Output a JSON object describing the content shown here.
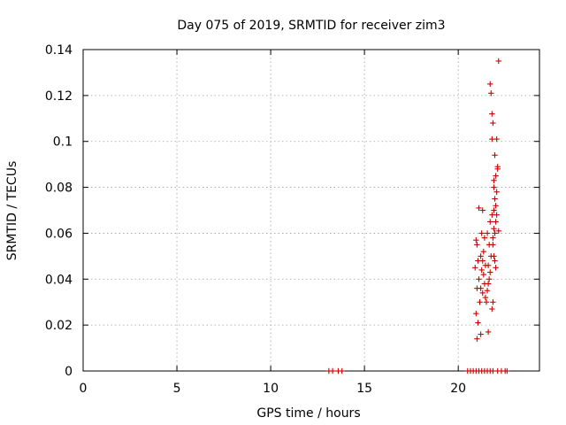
{
  "chart_data": {
    "type": "scatter",
    "title": "Day 075 of 2019, SRMTID for receiver zim3",
    "xlabel": "GPS time / hours",
    "ylabel": "SRMTID / TECUs",
    "xlim": [
      0,
      24.33
    ],
    "ylim": [
      0,
      0.14
    ],
    "x_ticks": [
      0,
      5,
      10,
      15,
      20
    ],
    "x_tick_labels": [
      "0",
      "5",
      "10",
      "15",
      "20"
    ],
    "y_ticks": [
      0,
      0.02,
      0.04,
      0.06,
      0.08,
      0.1,
      0.12,
      0.14
    ],
    "y_tick_labels": [
      "0",
      "0.02",
      "0.04",
      "0.06",
      "0.08",
      "0.1",
      "0.12",
      "0.14"
    ],
    "grid": true,
    "legend": "none",
    "marker": "+",
    "color": "#cc0000",
    "series": [
      {
        "x": [
          13.1,
          13.3,
          13.6,
          13.8,
          20.5,
          20.65,
          20.8,
          20.95,
          21.1,
          21.25,
          21.4,
          21.55,
          21.7,
          21.85,
          22.1,
          22.3,
          22.5,
          22.6,
          20.95,
          21.0,
          21.05,
          20.9,
          21.1,
          21.0,
          21.15,
          20.95,
          21.05,
          21.2,
          21.0,
          21.1,
          21.3,
          21.25,
          21.4,
          21.35,
          21.2,
          21.3,
          21.45,
          21.25,
          21.35,
          21.4,
          21.2,
          21.3,
          21.5,
          21.45,
          21.6,
          21.55,
          21.65,
          21.7,
          21.6,
          21.75,
          21.65,
          21.55,
          21.7,
          21.8,
          21.6,
          21.85,
          21.95,
          21.9,
          22.0,
          22.05,
          21.9,
          22.0,
          21.95,
          22.05,
          21.9,
          22.0,
          22.1,
          21.95,
          22.05,
          22.1,
          21.85,
          21.95,
          22.0,
          21.7,
          21.75,
          21.8,
          21.85,
          21.8,
          21.9,
          21.85,
          21.8,
          21.9,
          22.15,
          22.15
        ],
        "y": [
          0,
          0,
          0,
          0,
          0,
          0,
          0,
          0,
          0,
          0,
          0,
          0,
          0,
          0,
          0,
          0,
          0,
          0,
          0.057,
          0.055,
          0.048,
          0.045,
          0.04,
          0.036,
          0.03,
          0.025,
          0.021,
          0.016,
          0.014,
          0.071,
          0.07,
          0.06,
          0.058,
          0.052,
          0.05,
          0.048,
          0.046,
          0.044,
          0.042,
          0.038,
          0.036,
          0.034,
          0.03,
          0.032,
          0.017,
          0.035,
          0.04,
          0.043,
          0.046,
          0.05,
          0.055,
          0.06,
          0.065,
          0.068,
          0.038,
          0.058,
          0.06,
          0.062,
          0.065,
          0.068,
          0.07,
          0.072,
          0.075,
          0.078,
          0.08,
          0.085,
          0.088,
          0.094,
          0.101,
          0.089,
          0.055,
          0.048,
          0.045,
          0.125,
          0.121,
          0.112,
          0.108,
          0.101,
          0.083,
          0.03,
          0.027,
          0.05,
          0.135,
          0.061
        ]
      }
    ]
  }
}
